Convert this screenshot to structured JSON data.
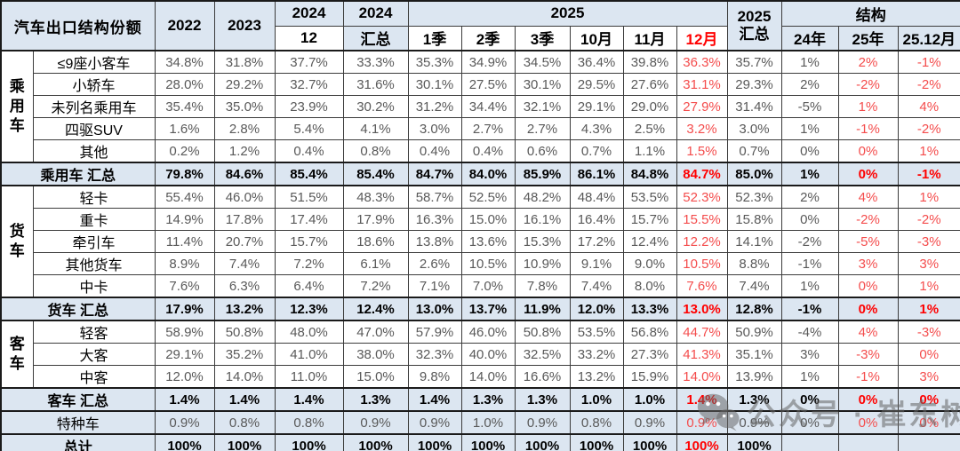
{
  "colors": {
    "header_bg": "#dce6f1",
    "summary_bg": "#dce6f1",
    "red_bold": "#ff0000",
    "red_soft": "#f44c4c",
    "value_gray": "#595959",
    "border": "#3c3c3c"
  },
  "watermark": {
    "text": "公众号 · 崔东树",
    "icon": "wechat-icon"
  },
  "chart_data": {
    "type": "table",
    "title": "汽车出口结构份额",
    "header": {
      "title": "汽车出口结构份额",
      "years": [
        "2022",
        "2023"
      ],
      "y2024": {
        "label": "2024",
        "subs": [
          "12",
          "汇总"
        ]
      },
      "y2025": {
        "label": "2025",
        "subs": [
          "1季",
          "2季",
          "3季",
          "10月",
          "11月",
          "12月"
        ]
      },
      "y2025_total": {
        "line1": "2025",
        "line2": "汇总"
      },
      "structure": {
        "label": "结构",
        "subs": [
          "24年",
          "25年",
          "25.12月"
        ]
      }
    },
    "columns": [
      "2022",
      "2023",
      "2024.12",
      "2024汇总",
      "2025.1季",
      "2025.2季",
      "2025.3季",
      "2025.10月",
      "2025.11月",
      "2025.12月",
      "2025汇总",
      "结构24年",
      "结构25年",
      "结构25.12月"
    ],
    "red_value_indices": [
      9,
      12,
      13
    ],
    "rows": [
      {
        "label": "≤9座小客车",
        "type": "data",
        "group": "乘用车",
        "group_rows": 5,
        "values": [
          "34.8%",
          "31.8%",
          "37.7%",
          "33.3%",
          "35.3%",
          "34.9%",
          "34.5%",
          "36.4%",
          "39.8%",
          "36.3%",
          "35.7%",
          "1%",
          "2%",
          "-1%"
        ]
      },
      {
        "label": "小轿车",
        "type": "data",
        "values": [
          "28.0%",
          "29.2%",
          "32.7%",
          "31.6%",
          "30.1%",
          "27.5%",
          "30.1%",
          "29.5%",
          "27.6%",
          "31.1%",
          "29.3%",
          "2%",
          "-2%",
          "-2%"
        ]
      },
      {
        "label": "未列名乘用车",
        "type": "data",
        "values": [
          "35.4%",
          "35.0%",
          "23.9%",
          "30.2%",
          "31.2%",
          "34.4%",
          "32.1%",
          "29.1%",
          "29.0%",
          "27.9%",
          "31.4%",
          "-5%",
          "1%",
          "4%"
        ]
      },
      {
        "label": "四驱SUV",
        "type": "data",
        "values": [
          "1.6%",
          "2.8%",
          "5.4%",
          "4.1%",
          "3.0%",
          "2.7%",
          "2.7%",
          "4.3%",
          "2.5%",
          "3.2%",
          "3.0%",
          "1%",
          "-1%",
          "-2%"
        ]
      },
      {
        "label": "其他",
        "type": "data",
        "values": [
          "0.2%",
          "1.2%",
          "0.4%",
          "0.8%",
          "0.4%",
          "0.4%",
          "0.6%",
          "0.7%",
          "1.1%",
          "1.5%",
          "0.7%",
          "0%",
          "0%",
          "1%"
        ]
      },
      {
        "label": "乘用车 汇总",
        "type": "summary",
        "values": [
          "79.8%",
          "84.6%",
          "85.4%",
          "85.4%",
          "84.7%",
          "84.0%",
          "85.9%",
          "86.1%",
          "84.8%",
          "84.7%",
          "85.0%",
          "1%",
          "0%",
          "-1%"
        ]
      },
      {
        "label": "轻卡",
        "type": "data",
        "group": "货车",
        "group_rows": 5,
        "values": [
          "55.4%",
          "46.0%",
          "51.5%",
          "48.3%",
          "58.7%",
          "52.5%",
          "48.2%",
          "48.4%",
          "53.5%",
          "52.3%",
          "52.3%",
          "2%",
          "4%",
          "1%"
        ]
      },
      {
        "label": "重卡",
        "type": "data",
        "values": [
          "14.9%",
          "17.8%",
          "17.4%",
          "17.9%",
          "16.3%",
          "15.0%",
          "16.1%",
          "16.4%",
          "15.7%",
          "15.5%",
          "15.8%",
          "0%",
          "-2%",
          "-2%"
        ]
      },
      {
        "label": "牵引车",
        "type": "data",
        "values": [
          "11.4%",
          "20.7%",
          "15.7%",
          "18.6%",
          "13.8%",
          "13.6%",
          "15.3%",
          "17.2%",
          "12.4%",
          "12.2%",
          "14.1%",
          "-2%",
          "-5%",
          "-3%"
        ]
      },
      {
        "label": "其他货车",
        "type": "data",
        "values": [
          "8.9%",
          "7.4%",
          "7.2%",
          "6.1%",
          "2.6%",
          "10.5%",
          "10.9%",
          "9.1%",
          "9.0%",
          "10.5%",
          "8.8%",
          "-1%",
          "3%",
          "3%"
        ]
      },
      {
        "label": "中卡",
        "type": "data",
        "values": [
          "7.6%",
          "6.3%",
          "6.4%",
          "7.2%",
          "7.1%",
          "7.0%",
          "7.8%",
          "7.4%",
          "8.0%",
          "7.6%",
          "7.4%",
          "1%",
          "0%",
          "1%"
        ]
      },
      {
        "label": "货车 汇总",
        "type": "summary",
        "values": [
          "17.9%",
          "13.2%",
          "12.3%",
          "12.4%",
          "13.0%",
          "13.7%",
          "11.9%",
          "12.0%",
          "13.3%",
          "13.0%",
          "12.8%",
          "-1%",
          "0%",
          "1%"
        ]
      },
      {
        "label": "轻客",
        "type": "data",
        "group": "客车",
        "group_rows": 3,
        "values": [
          "58.9%",
          "50.8%",
          "48.0%",
          "47.0%",
          "57.9%",
          "46.0%",
          "50.8%",
          "53.5%",
          "56.8%",
          "44.7%",
          "50.9%",
          "-4%",
          "4%",
          "-3%"
        ]
      },
      {
        "label": "大客",
        "type": "data",
        "values": [
          "29.1%",
          "35.2%",
          "41.0%",
          "38.0%",
          "32.3%",
          "40.0%",
          "32.5%",
          "33.2%",
          "27.3%",
          "41.3%",
          "35.1%",
          "3%",
          "-3%",
          "0%"
        ]
      },
      {
        "label": "中客",
        "type": "data",
        "values": [
          "12.0%",
          "14.0%",
          "11.0%",
          "15.0%",
          "9.8%",
          "14.0%",
          "16.6%",
          "13.2%",
          "15.9%",
          "14.0%",
          "13.9%",
          "1%",
          "-1%",
          "3%"
        ]
      },
      {
        "label": "客车 汇总",
        "type": "summary",
        "values": [
          "1.4%",
          "1.4%",
          "1.4%",
          "1.3%",
          "1.4%",
          "1.3%",
          "1.3%",
          "1.0%",
          "1.0%",
          "1.4%",
          "1.3%",
          "0%",
          "0%",
          "0%"
        ]
      },
      {
        "label": "特种车",
        "type": "special",
        "values": [
          "0.9%",
          "0.8%",
          "0.8%",
          "0.9%",
          "0.9%",
          "1.0%",
          "0.9%",
          "0.8%",
          "0.9%",
          "0.9%",
          "0.9%",
          "0%",
          "0%",
          "0%"
        ]
      },
      {
        "label": "总计",
        "type": "summary",
        "values": [
          "100%",
          "100%",
          "100%",
          "100%",
          "100%",
          "100%",
          "100%",
          "100%",
          "100%",
          "100%",
          "100%",
          "",
          "",
          ""
        ]
      }
    ]
  }
}
